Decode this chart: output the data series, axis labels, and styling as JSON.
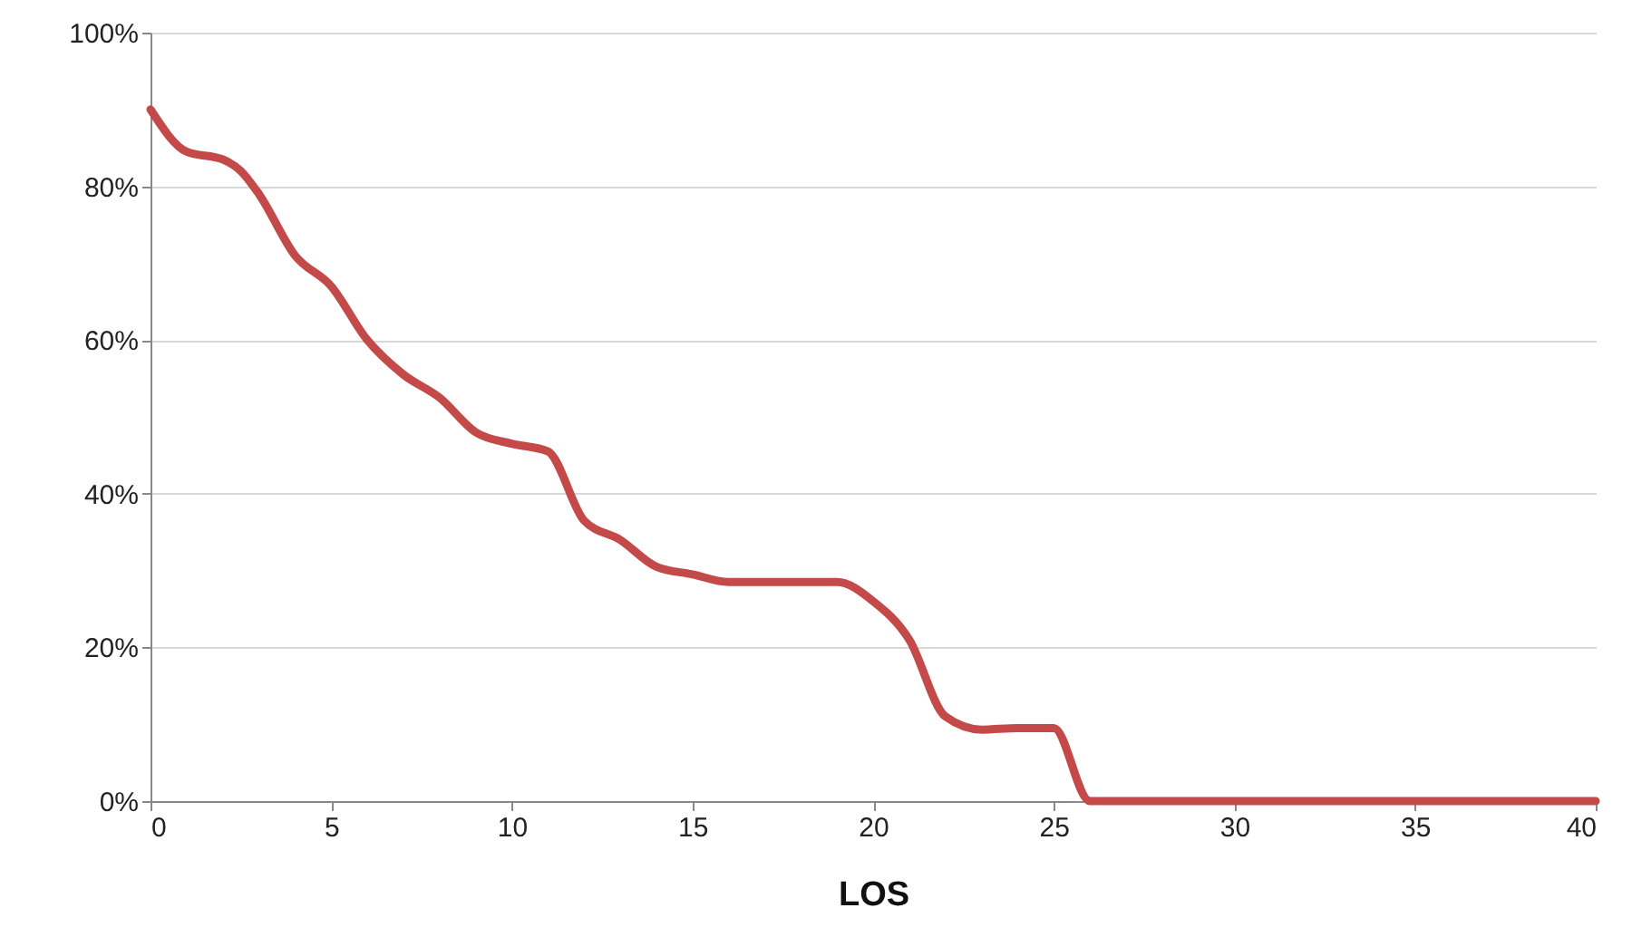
{
  "chart_data": {
    "type": "line",
    "xlabel": "LOS",
    "x": [
      0,
      1,
      2,
      2.5,
      3,
      4,
      5,
      6,
      7,
      8,
      9,
      10,
      11,
      12,
      13,
      14,
      15,
      16,
      17,
      18,
      19,
      20,
      21,
      22,
      23,
      24,
      25,
      26,
      27,
      30,
      35,
      40
    ],
    "series": [
      {
        "color": "#c44a4a",
        "values": [
          90,
          84.5,
          83.5,
          82,
          79,
          71,
          67,
          60,
          55.5,
          52.5,
          48,
          46.5,
          45.5,
          36.5,
          34,
          30.5,
          29.5,
          28.5,
          28.5,
          28.5,
          28.5,
          26,
          21,
          11,
          9.3,
          9.5,
          9.5,
          0,
          0,
          0,
          0,
          0
        ]
      }
    ],
    "xlim": [
      0,
      40
    ],
    "xticks": [
      0,
      5,
      10,
      15,
      20,
      25,
      30,
      35,
      40
    ],
    "ylim": [
      0,
      100
    ],
    "yticks": [
      {
        "value": 0,
        "label": "0%"
      },
      {
        "value": 20,
        "label": "20%"
      },
      {
        "value": 40,
        "label": "40%"
      },
      {
        "value": 60,
        "label": "60%"
      },
      {
        "value": 80,
        "label": "80%"
      },
      {
        "value": 100,
        "label": "100%"
      }
    ],
    "grid": "y",
    "marker": "none",
    "line_style": "solid"
  }
}
